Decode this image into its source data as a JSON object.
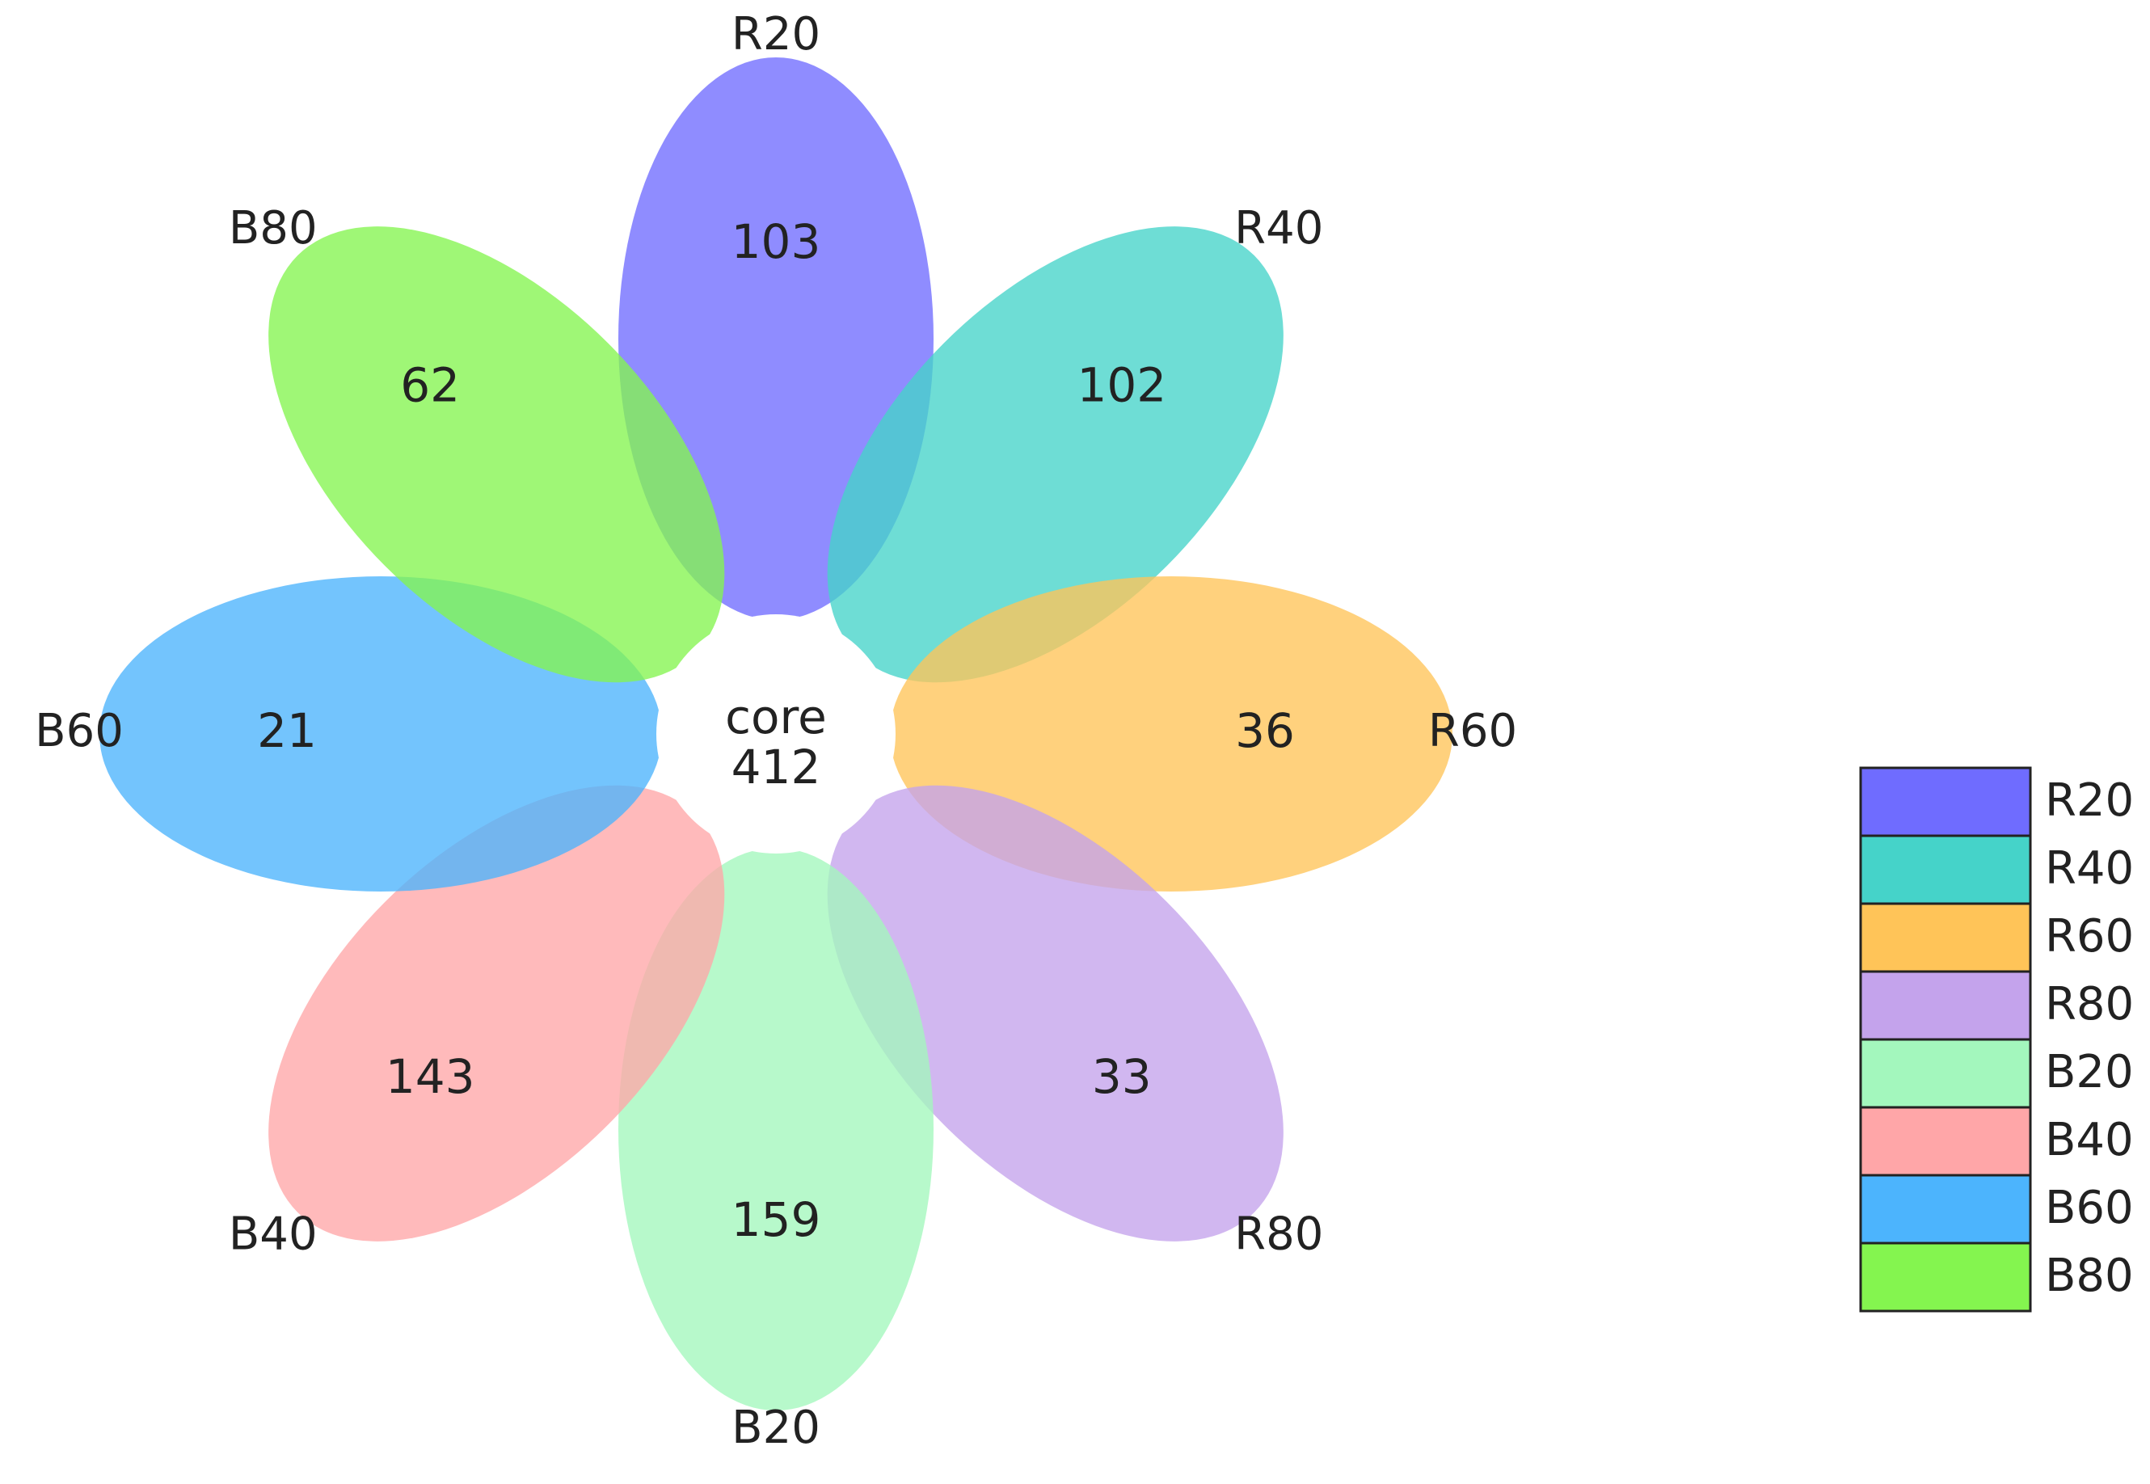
{
  "chart_data": {
    "type": "flower",
    "petals": [
      {
        "name": "R20",
        "count": 103,
        "color": "#6f6cff"
      },
      {
        "name": "R40",
        "count": 102,
        "color": "#45d3c9"
      },
      {
        "name": "R60",
        "count": 36,
        "color": "#ffc458"
      },
      {
        "name": "R80",
        "count": 33,
        "color": "#c4a3ec"
      },
      {
        "name": "B20",
        "count": 159,
        "color": "#a3f7bd"
      },
      {
        "name": "B40",
        "count": 143,
        "color": "#ffa6a8"
      },
      {
        "name": "B60",
        "count": 21,
        "color": "#4cb4fd"
      },
      {
        "name": "B80",
        "count": 62,
        "color": "#84f54f"
      }
    ],
    "core": {
      "label": "core",
      "count": 412
    }
  }
}
